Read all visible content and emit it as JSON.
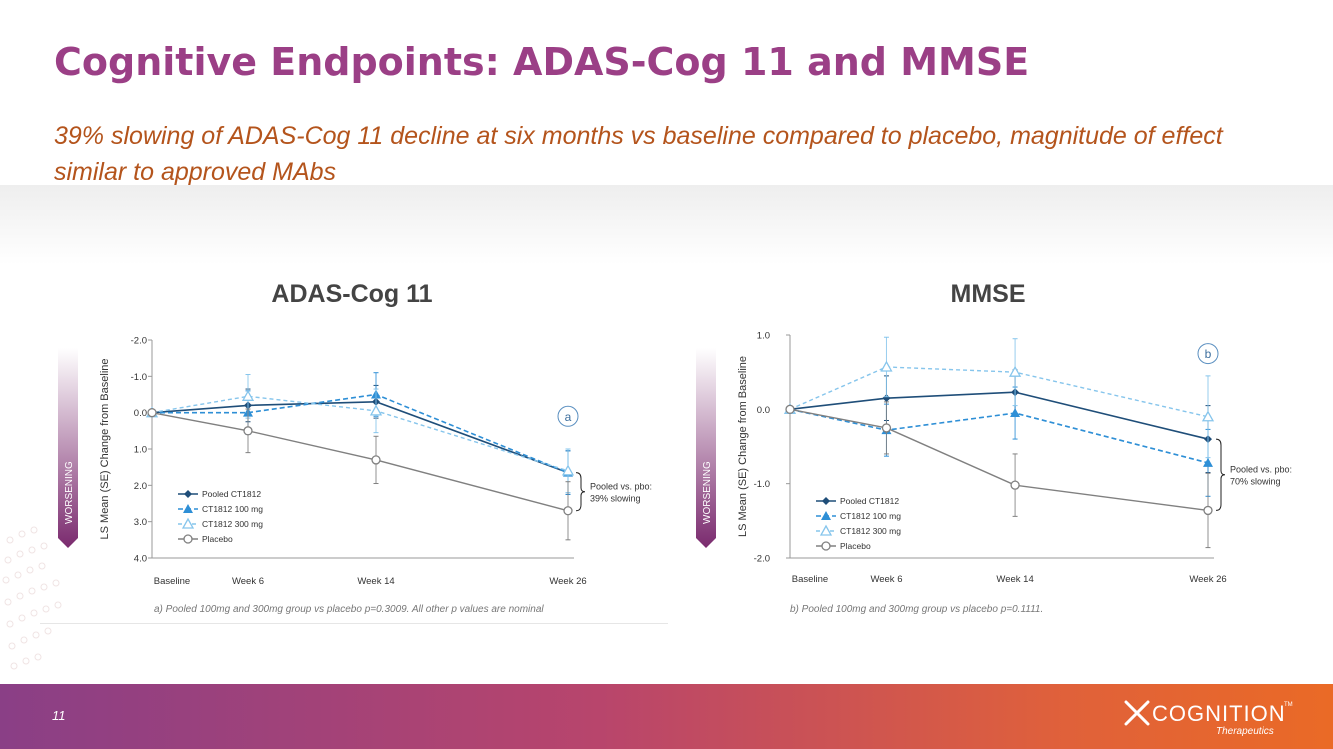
{
  "slide": {
    "title": "Cognitive Endpoints: ADAS-Cog 11 and MMSE",
    "subtitle": "39% slowing of ADAS-Cog 11 decline at six months vs baseline compared to placebo, magnitude of effect similar to approved MAbs",
    "page_number": "11"
  },
  "logo": {
    "name": "COGNITION",
    "tm": "TM",
    "tagline": "Therapeutics"
  },
  "colors": {
    "title": "#9b3f86",
    "subtitle": "#b4541c",
    "pooled": "#1f4e79",
    "dose100": "#2e8fd6",
    "dose300": "#86c5ec",
    "placebo": "#808080"
  },
  "chart_data": [
    {
      "type": "line",
      "title": "ADAS-Cog 11",
      "ylabel": "LS Mean (SE) Change from Baseline",
      "side_label": "WORSENING",
      "x": [
        "Baseline",
        "Week 6",
        "Week 14",
        "Week 26"
      ],
      "x_weeks": [
        0,
        6,
        14,
        26
      ],
      "ylim": [
        -2.0,
        4.0
      ],
      "y_inverted": true,
      "yticks": [
        -2.0,
        -1.0,
        0.0,
        1.0,
        2.0,
        3.0,
        4.0
      ],
      "ytick_labels": [
        "-2.0",
        "-1.0",
        "0.0",
        "1.0",
        "2.0",
        "3.0",
        "4.0"
      ],
      "series": [
        {
          "name": "Pooled CT1812",
          "style": "pooled",
          "values": [
            0.0,
            -0.2,
            -0.3,
            1.65
          ],
          "se": [
            0,
            0.45,
            0.45,
            0.6
          ]
        },
        {
          "name": "CT1812 100 mg",
          "style": "d100",
          "values": [
            0.0,
            0.0,
            -0.5,
            1.65
          ],
          "se": [
            0,
            0.6,
            0.6,
            0.6
          ]
        },
        {
          "name": "CT1812 300 mg",
          "style": "d300",
          "values": [
            0.0,
            -0.45,
            -0.05,
            1.6
          ],
          "se": [
            0,
            0.6,
            0.6,
            0.6
          ]
        },
        {
          "name": "Placebo",
          "style": "placebo",
          "values": [
            0.0,
            0.5,
            1.3,
            2.7
          ],
          "se": [
            0,
            0.6,
            0.65,
            0.8
          ]
        }
      ],
      "annotation_letter": "a",
      "annotation_letter_at": {
        "x": 26,
        "y": 0.1
      },
      "bracket_text": [
        "Pooled vs. pbo:",
        "39% slowing"
      ],
      "footnote": "a) Pooled 100mg and 300mg group vs placebo p=0.3009. All other p values are nominal"
    },
    {
      "type": "line",
      "title": "MMSE",
      "ylabel": "LS Mean (SE) Change from Baseline",
      "side_label": "WORSENING",
      "x": [
        "Baseline",
        "Week 6",
        "Week 14",
        "Week 26"
      ],
      "x_weeks": [
        0,
        6,
        14,
        26
      ],
      "ylim": [
        -2.0,
        1.0
      ],
      "y_inverted": false,
      "yticks": [
        1.0,
        0.0,
        -1.0,
        -2.0
      ],
      "ytick_labels": [
        "1.0",
        "0.0",
        "-1.0",
        "-2.0"
      ],
      "series": [
        {
          "name": "Pooled CT1812",
          "style": "pooled",
          "values": [
            0.0,
            0.15,
            0.23,
            -0.4
          ],
          "se": [
            0,
            0.3,
            0.3,
            0.45
          ]
        },
        {
          "name": "CT1812 100 mg",
          "style": "d100",
          "values": [
            0.0,
            -0.28,
            -0.05,
            -0.72
          ],
          "se": [
            0,
            0.35,
            0.35,
            0.45
          ]
        },
        {
          "name": "CT1812 300 mg",
          "style": "d300",
          "values": [
            0.0,
            0.57,
            0.5,
            -0.1
          ],
          "se": [
            0,
            0.4,
            0.45,
            0.55
          ]
        },
        {
          "name": "Placebo",
          "style": "placebo",
          "values": [
            0.0,
            -0.25,
            -1.02,
            -1.36
          ],
          "se": [
            0,
            0.35,
            0.42,
            0.5
          ]
        }
      ],
      "annotation_letter": "b",
      "annotation_letter_at": {
        "x": 26,
        "y": 0.75
      },
      "bracket_text": [
        "Pooled vs. pbo:",
        "70% slowing"
      ],
      "footnote": "b) Pooled 100mg and 300mg group vs placebo p=0.1111."
    }
  ]
}
